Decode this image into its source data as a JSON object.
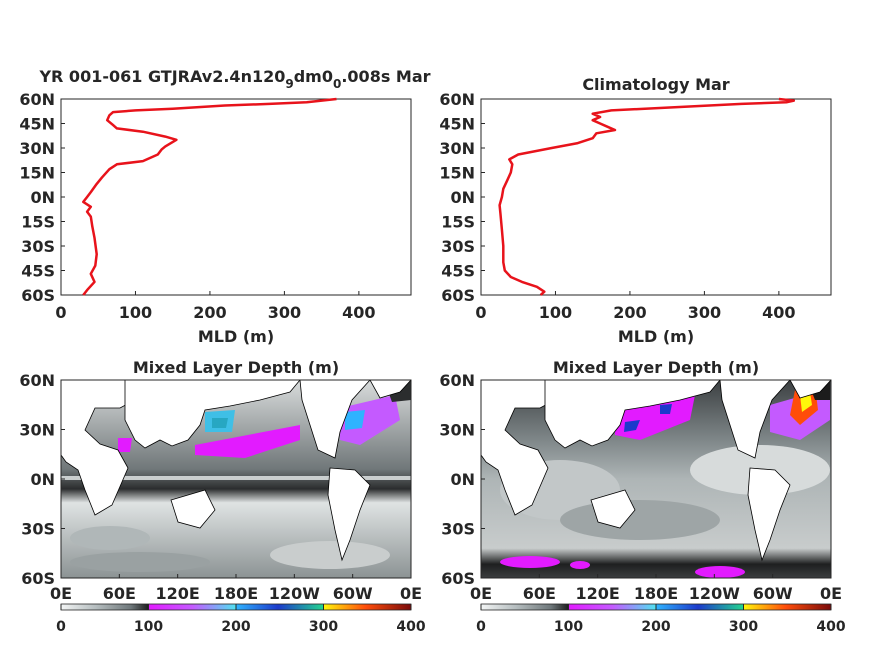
{
  "chart_data": [
    {
      "type": "line",
      "title": "YR 001-061 GTJRAv2.4n120",
      "title_parts": [
        "YR 001-061 GTJRAv2.4n120",
        "9",
        "dm0",
        "0",
        ".008s Mar"
      ],
      "xlabel": "MLD (m)",
      "ylabel": "",
      "xlim": [
        0,
        470
      ],
      "ylim": [
        -60,
        60
      ],
      "xticks": [
        "0",
        "100",
        "200",
        "300",
        "400"
      ],
      "yticks": [
        "60N",
        "45N",
        "30N",
        "15N",
        "0N",
        "15S",
        "30S",
        "45S",
        "60S"
      ],
      "line_color": "#e8131b",
      "lat": [
        -60,
        -57,
        -52,
        -47,
        -42,
        -35,
        -25,
        -18,
        -12,
        -9,
        -6,
        -3,
        0,
        3,
        8,
        12,
        17,
        20,
        22,
        26,
        29,
        31,
        35,
        37,
        40,
        42,
        44,
        47,
        50,
        52,
        53,
        54,
        56,
        57,
        58,
        59,
        60
      ],
      "mld": [
        30,
        35,
        45,
        40,
        46,
        48,
        45,
        42,
        40,
        35,
        40,
        30,
        35,
        40,
        48,
        55,
        65,
        75,
        110,
        130,
        135,
        140,
        155,
        140,
        110,
        75,
        70,
        62,
        65,
        70,
        100,
        150,
        220,
        280,
        330,
        350,
        370
      ]
    },
    {
      "type": "line",
      "title": "Climatology Mar",
      "xlabel": "MLD (m)",
      "ylabel": "",
      "xlim": [
        0,
        470
      ],
      "ylim": [
        -60,
        60
      ],
      "xticks": [
        "0",
        "100",
        "200",
        "300",
        "400"
      ],
      "yticks": [
        "60N",
        "45N",
        "30N",
        "15N",
        "0N",
        "15S",
        "30S",
        "45S",
        "60S"
      ],
      "line_color": "#e8131b",
      "lat": [
        -60,
        -58,
        -55,
        -52,
        -49,
        -45,
        -40,
        -30,
        -20,
        -10,
        -5,
        0,
        5,
        10,
        15,
        20,
        23,
        26,
        30,
        33,
        36,
        39,
        41,
        43,
        45,
        47,
        49,
        51,
        53,
        55,
        57,
        58,
        59,
        60
      ],
      "mld": [
        80,
        85,
        75,
        55,
        40,
        32,
        30,
        30,
        28,
        26,
        25,
        28,
        30,
        35,
        40,
        42,
        38,
        50,
        95,
        130,
        150,
        155,
        180,
        170,
        160,
        150,
        160,
        150,
        175,
        260,
        350,
        410,
        420,
        400
      ]
    },
    {
      "type": "heatmap",
      "title": "Mixed Layer Depth (m)",
      "xticks": [
        "0E",
        "60E",
        "120E",
        "180E",
        "120W",
        "60W",
        "0E"
      ],
      "yticks": [
        "60N",
        "30N",
        "0N",
        "30S",
        "60S"
      ],
      "xlim": [
        0,
        360
      ],
      "ylim": [
        -60,
        60
      ],
      "colorbar_ticks": [
        "0",
        "100",
        "200",
        "300",
        "400"
      ],
      "colorbar_range": [
        0,
        400
      ]
    },
    {
      "type": "heatmap",
      "title": "Mixed Layer Depth (m)",
      "xticks": [
        "0E",
        "60E",
        "120E",
        "180E",
        "120W",
        "60W",
        "0E"
      ],
      "yticks": [
        "60N",
        "30N",
        "0N",
        "30S",
        "60S"
      ],
      "xlim": [
        0,
        360
      ],
      "ylim": [
        -60,
        60
      ],
      "colorbar_ticks": [
        "0",
        "100",
        "200",
        "300",
        "400"
      ],
      "colorbar_range": [
        0,
        400
      ]
    }
  ]
}
